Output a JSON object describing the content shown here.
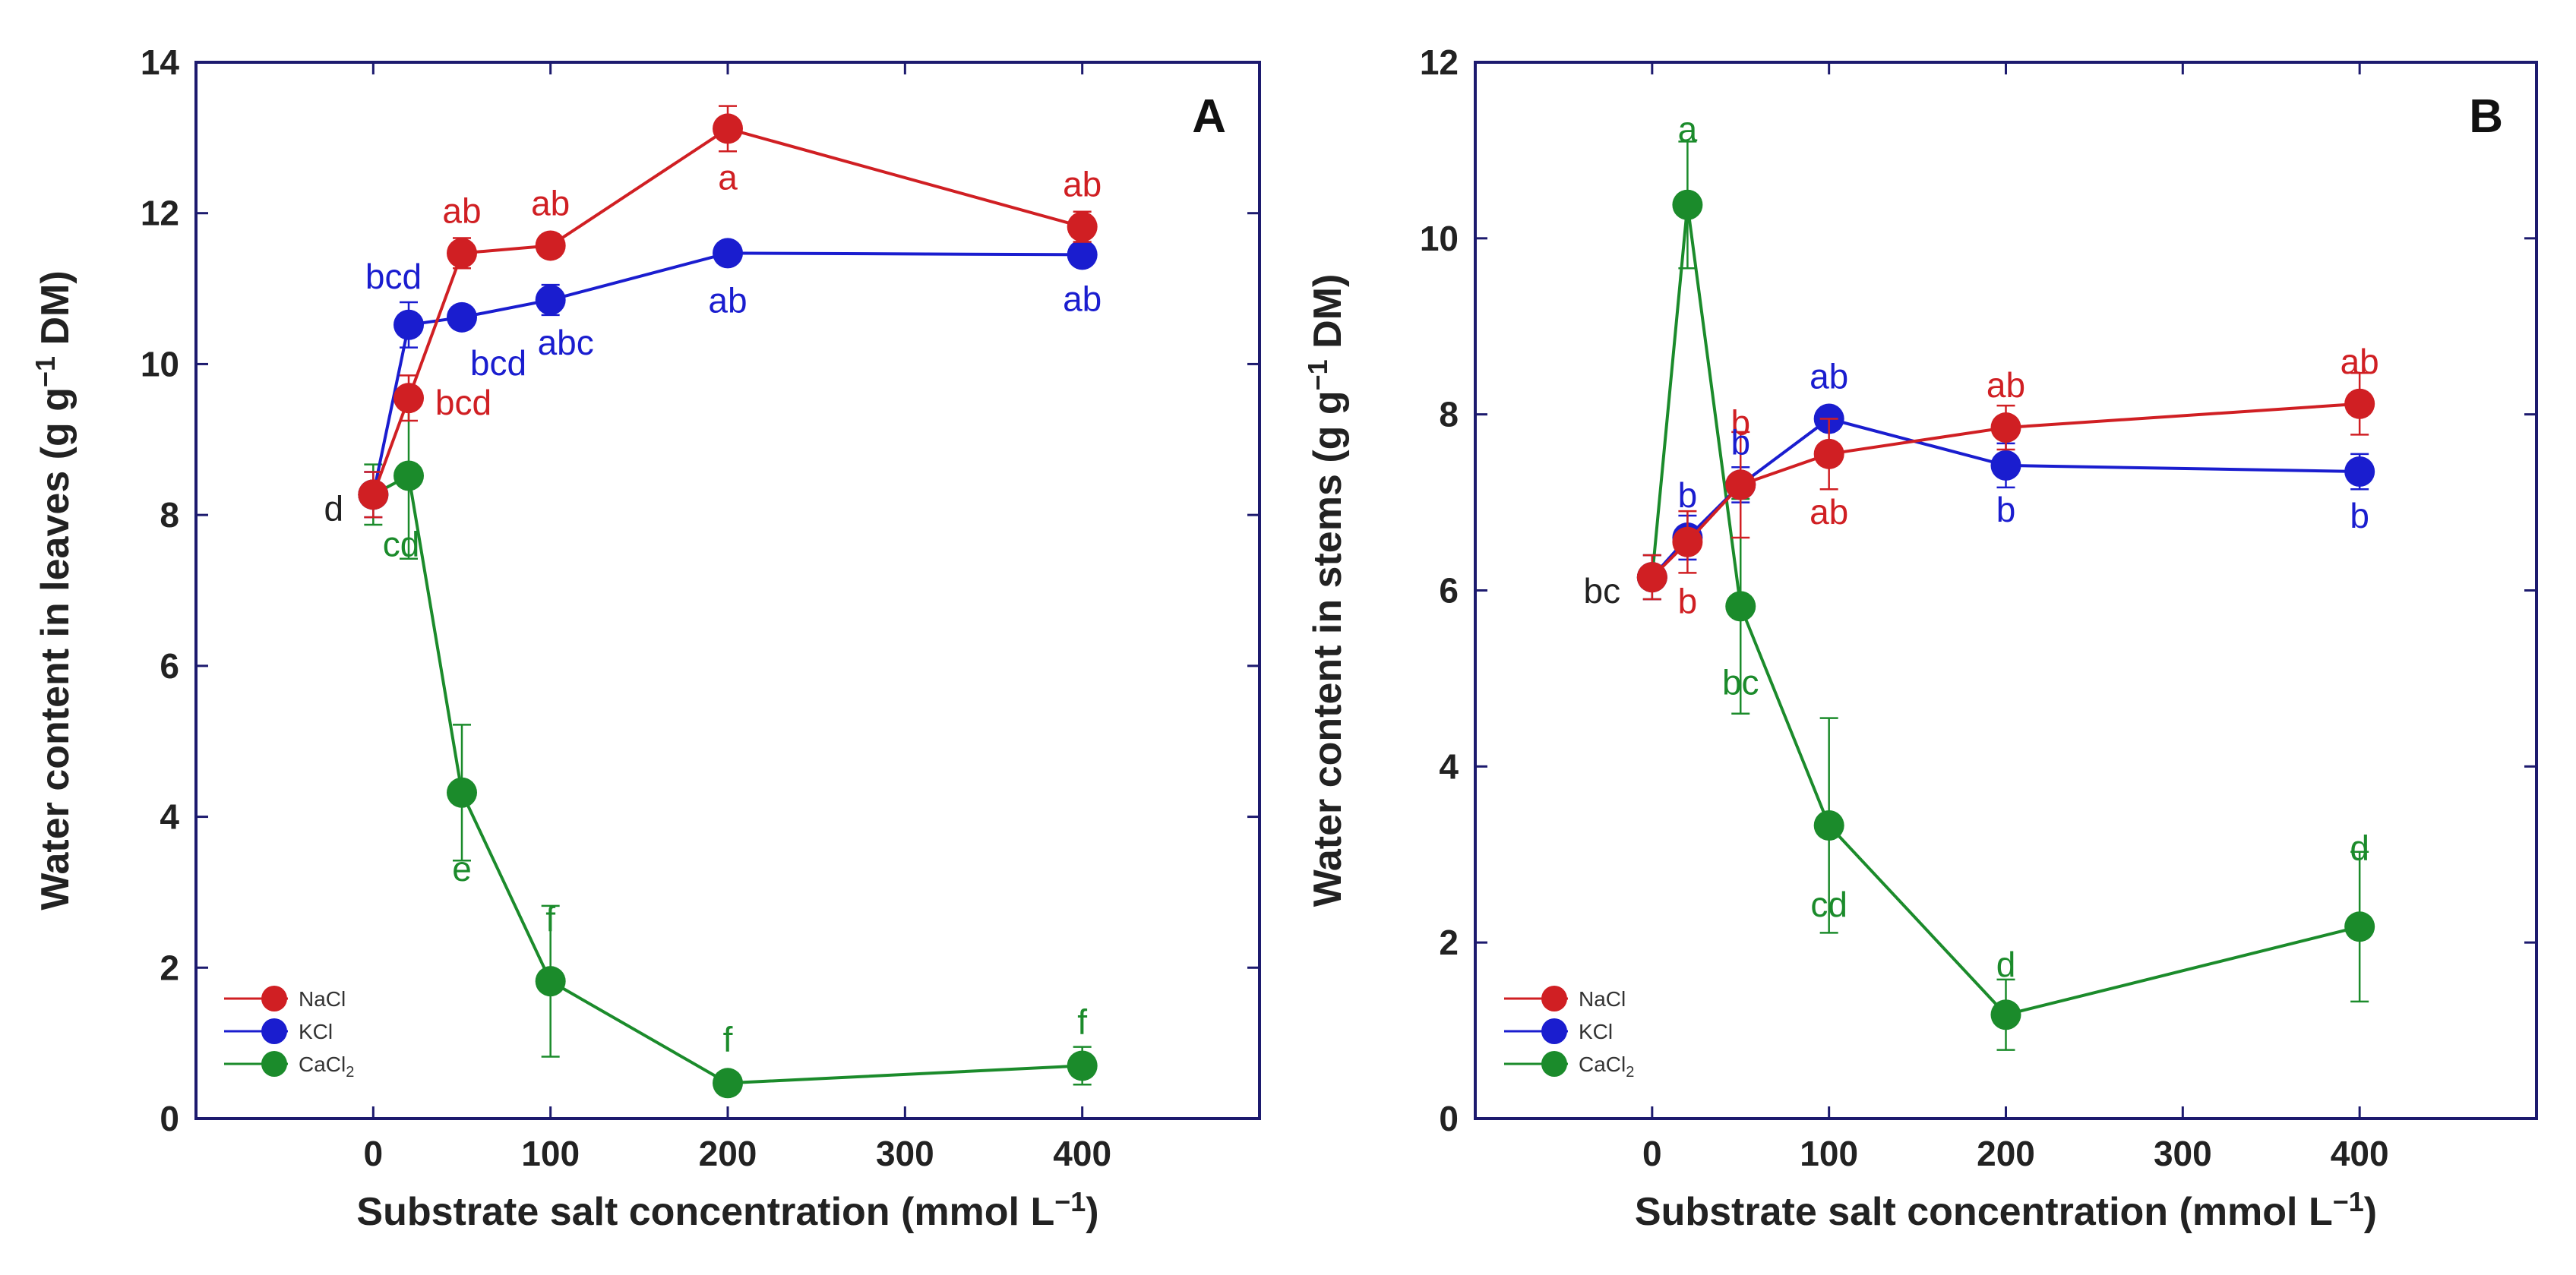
{
  "chart_data": [
    {
      "panel": "A",
      "type": "line",
      "xlabel": "Substrate salt concentration (mmol L⁻¹)",
      "ylabel": "Water content in leaves (g g⁻¹ DM)",
      "xlim": [
        -100,
        500
      ],
      "ylim": [
        0,
        14
      ],
      "xticks": [
        0,
        100,
        200,
        300,
        400
      ],
      "yticks": [
        0,
        2,
        4,
        6,
        8,
        10,
        12,
        14
      ],
      "legend": "bottom-left",
      "series": [
        {
          "name": "NaCl",
          "color": "#d01f23",
          "x": [
            0,
            20,
            50,
            100,
            200,
            400
          ],
          "y": [
            8.27,
            9.55,
            11.47,
            11.57,
            13.12,
            11.82
          ],
          "err": [
            0.3,
            0.3,
            0.2,
            0.15,
            0.3,
            0.2
          ],
          "labels": [
            "",
            "bcd",
            "ab",
            "ab",
            "a",
            "ab"
          ]
        },
        {
          "name": "KCl",
          "color": "#1a1dcf",
          "x": [
            0,
            20,
            50,
            100,
            200,
            400
          ],
          "y": [
            8.27,
            10.52,
            10.62,
            10.85,
            11.47,
            11.45
          ],
          "err": [
            0.3,
            0.3,
            0.15,
            0.2,
            0.12,
            0.12
          ],
          "labels": [
            "",
            "bcd",
            "bcd",
            "abc",
            "ab",
            "ab"
          ]
        },
        {
          "name": "CaCl₂",
          "color": "#1b8b2b",
          "x": [
            0,
            20,
            50,
            100,
            200,
            400
          ],
          "y": [
            8.27,
            8.52,
            4.32,
            1.82,
            0.47,
            0.7
          ],
          "err": [
            0.4,
            1.1,
            0.9,
            1.0,
            0.1,
            0.25
          ],
          "labels": [
            "d",
            "cd",
            "e",
            "f",
            "f",
            "f"
          ]
        }
      ]
    },
    {
      "panel": "B",
      "type": "line",
      "xlabel": "Substrate salt concentration (mmol L⁻¹)",
      "ylabel": "Water content in stems (g g⁻¹ DM)",
      "xlim": [
        -100,
        500
      ],
      "ylim": [
        0,
        12
      ],
      "xticks": [
        0,
        100,
        200,
        300,
        400
      ],
      "yticks": [
        0,
        2,
        4,
        6,
        8,
        10,
        12
      ],
      "legend": "bottom-left",
      "series": [
        {
          "name": "NaCl",
          "color": "#d01f23",
          "x": [
            0,
            20,
            50,
            100,
            200,
            400
          ],
          "y": [
            6.15,
            6.55,
            7.2,
            7.55,
            7.85,
            8.12
          ],
          "err": [
            0.25,
            0.35,
            0.6,
            0.4,
            0.25,
            0.35
          ],
          "labels": [
            "",
            "b",
            "b",
            "ab",
            "ab",
            "ab"
          ]
        },
        {
          "name": "KCl",
          "color": "#1a1dcf",
          "x": [
            0,
            20,
            50,
            100,
            200,
            400
          ],
          "y": [
            6.15,
            6.6,
            7.2,
            7.95,
            7.42,
            7.35
          ],
          "err": [
            0.25,
            0.25,
            0.2,
            0.12,
            0.25,
            0.2
          ],
          "labels": [
            "",
            "b",
            "b",
            "ab",
            "b",
            "b"
          ]
        },
        {
          "name": "CaCl₂",
          "color": "#1b8b2b",
          "x": [
            0,
            20,
            50,
            100,
            200,
            400
          ],
          "y": [
            6.15,
            10.38,
            5.82,
            3.33,
            1.18,
            2.18
          ],
          "err": [
            0.25,
            0.72,
            1.22,
            1.22,
            0.4,
            0.85
          ],
          "labels": [
            "bc",
            "a",
            "bc",
            "cd",
            "d",
            "d"
          ]
        }
      ]
    }
  ]
}
